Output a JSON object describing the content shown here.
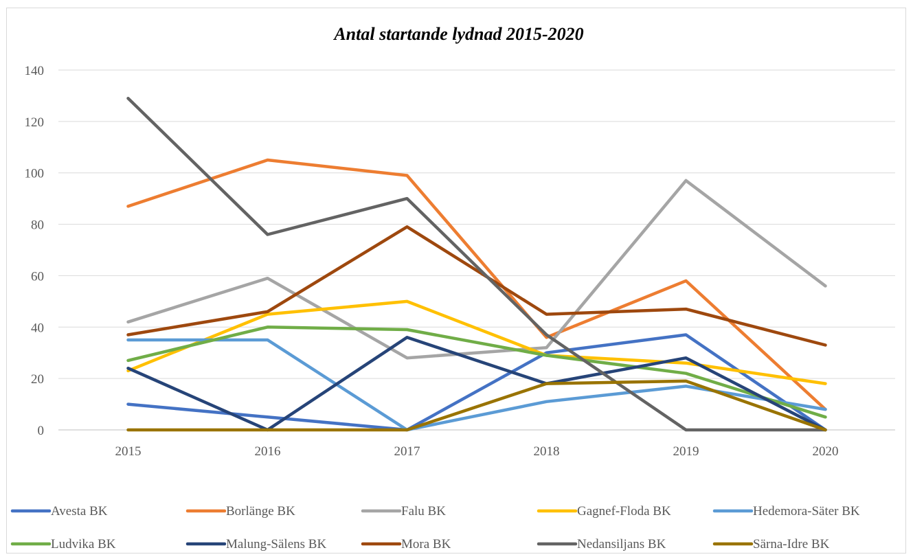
{
  "chart_data": {
    "type": "line",
    "title": "Antal startande lydnad 2015-2020",
    "xlabel": "",
    "ylabel": "",
    "x": [
      "2015",
      "2016",
      "2017",
      "2018",
      "2019",
      "2020"
    ],
    "ylim": [
      0,
      140
    ],
    "yticks": [
      0,
      20,
      40,
      60,
      80,
      100,
      120,
      140
    ],
    "grid": "horizontal",
    "legend_position": "bottom",
    "series": [
      {
        "name": "Avesta BK",
        "color": "#4472C4",
        "values": [
          10,
          5,
          0,
          30,
          37,
          0
        ]
      },
      {
        "name": "Borlänge BK",
        "color": "#ED7D31",
        "values": [
          87,
          105,
          99,
          36,
          58,
          8
        ]
      },
      {
        "name": "Falu BK",
        "color": "#A5A5A5",
        "values": [
          42,
          59,
          28,
          32,
          97,
          56
        ]
      },
      {
        "name": "Gagnef-Floda BK",
        "color": "#FFC000",
        "values": [
          23,
          45,
          50,
          29,
          26,
          18
        ]
      },
      {
        "name": "Hedemora-Säter BK",
        "color": "#5B9BD5",
        "values": [
          35,
          35,
          0,
          11,
          17,
          8
        ]
      },
      {
        "name": "Ludvika BK",
        "color": "#70AD47",
        "values": [
          27,
          40,
          39,
          29,
          22,
          5
        ]
      },
      {
        "name": "Malung-Sälens BK",
        "color": "#264478",
        "values": [
          24,
          0,
          36,
          18,
          28,
          0
        ]
      },
      {
        "name": "Mora BK",
        "color": "#9E480E",
        "values": [
          37,
          46,
          79,
          45,
          47,
          33
        ]
      },
      {
        "name": "Nedansiljans BK",
        "color": "#636363",
        "values": [
          129,
          76,
          90,
          37,
          0,
          0
        ]
      },
      {
        "name": "Särna-Idre BK",
        "color": "#997300",
        "values": [
          0,
          0,
          0,
          18,
          19,
          0
        ]
      }
    ]
  }
}
